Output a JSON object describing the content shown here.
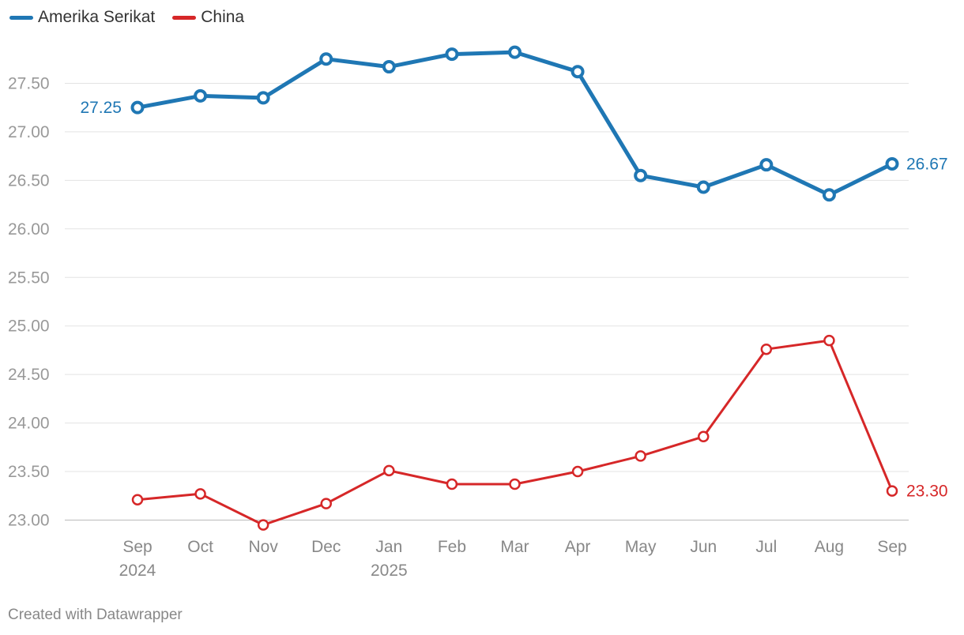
{
  "chart_data": {
    "type": "line",
    "title": "",
    "xlabel": "",
    "ylabel": "",
    "categories": [
      "Sep",
      "Oct",
      "Nov",
      "Dec",
      "Jan",
      "Feb",
      "Mar",
      "Apr",
      "May",
      "Jun",
      "Jul",
      "Aug",
      "Sep"
    ],
    "year_labels": {
      "0": "2024",
      "4": "2025"
    },
    "ylim": [
      23.0,
      27.5
    ],
    "yticks": [
      23.0,
      23.5,
      24.0,
      24.5,
      25.0,
      25.5,
      26.0,
      26.5,
      27.0,
      27.5
    ],
    "ytick_labels": [
      "23.00",
      "23.50",
      "24.00",
      "24.50",
      "25.00",
      "25.50",
      "26.00",
      "26.50",
      "27.00",
      "27.50"
    ],
    "grid": true,
    "legend_position": "top-left",
    "series": [
      {
        "name": "Amerika Serikat",
        "color": "#1f77b4",
        "values": [
          27.25,
          27.37,
          27.35,
          27.75,
          27.67,
          27.8,
          27.82,
          27.62,
          26.55,
          26.43,
          26.66,
          26.35,
          26.67
        ],
        "start_label": "27.25",
        "end_label": "26.67"
      },
      {
        "name": "China",
        "color": "#d62728",
        "values": [
          23.21,
          23.27,
          22.95,
          23.17,
          23.51,
          23.37,
          23.37,
          23.5,
          23.66,
          23.86,
          24.76,
          24.85,
          23.3
        ],
        "end_label": "23.30"
      }
    ]
  },
  "footer": "Created with Datawrapper"
}
